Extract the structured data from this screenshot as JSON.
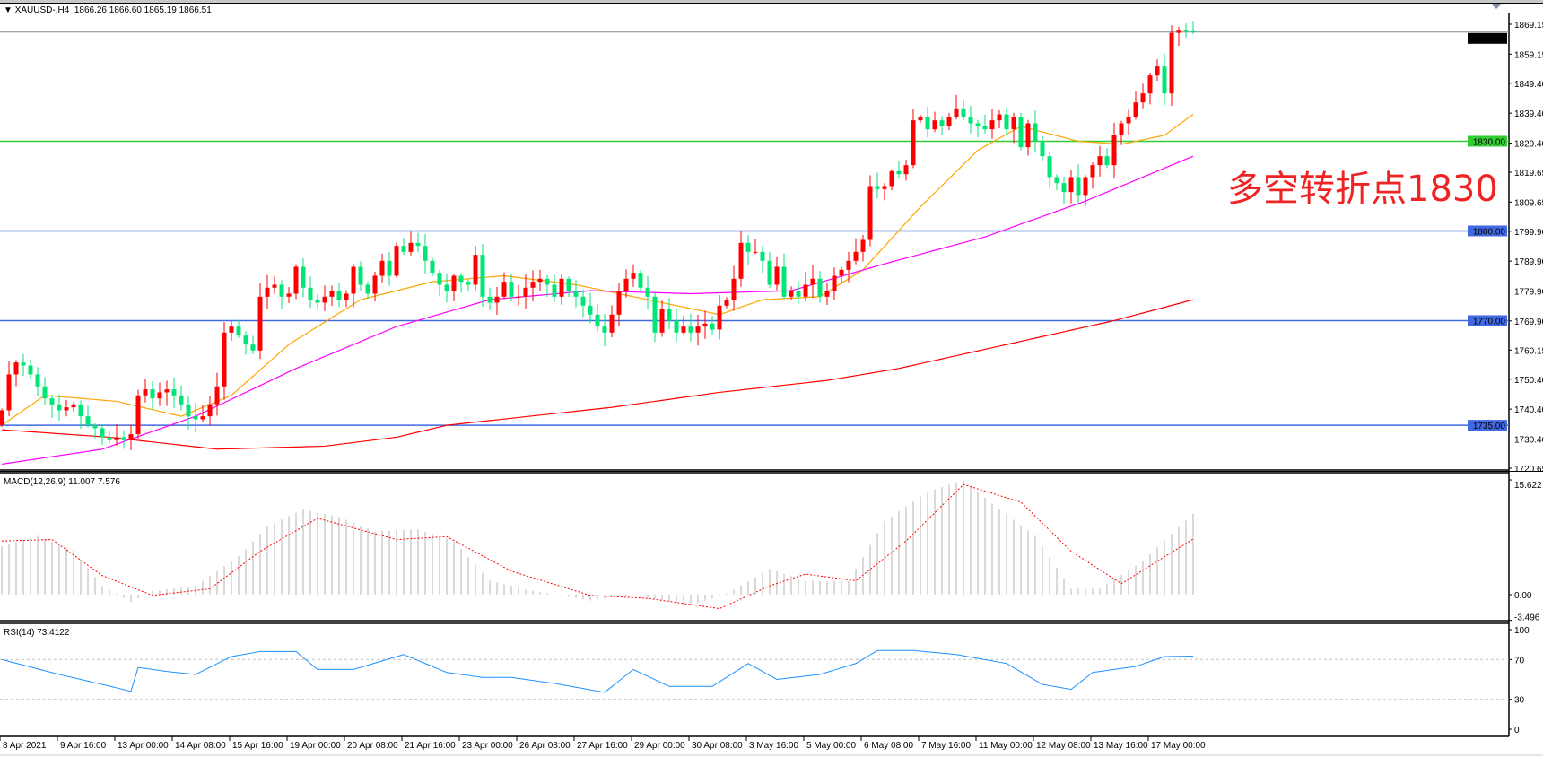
{
  "header": {
    "dropdown_icon": "triangle-down-icon",
    "symbol": "XAUUSD-,H4",
    "ohlc": "1866.26 1866.60 1865.19 1866.51"
  },
  "annotation": "多空转折点1830",
  "colors": {
    "bull_candle": "#ff0000",
    "bear_candle": "#00e676",
    "ma_fast": "#ffa500",
    "ma_mid": "#ff00ff",
    "ma_slow": "#ff0000",
    "support_green": "#32cd32",
    "support_blue": "#4169e1",
    "current_price": "#808a96",
    "macd_hist": "#b4b4b4",
    "macd_signal": "#ff0000",
    "rsi": "#1e90ff",
    "rsi_levels": "#c0c0c0"
  },
  "macd_label": "MACD(12,26,9) 11.007 7.576",
  "rsi_label": "RSI(14) 73.4122",
  "chart_data": {
    "type": "candlestick",
    "symbol": "XAUUSD-",
    "timeframe": "H4",
    "price_axis": {
      "ylim": [
        1720.65,
        1869.15
      ],
      "ticks": [
        "1869.15",
        "1859.15",
        "1849.40",
        "1839.40",
        "1829.40",
        "1819.65",
        "1809.65",
        "1799.90",
        "1789.90",
        "1779.90",
        "1769.90",
        "1760.15",
        "1750.40",
        "1740.40",
        "1730.40",
        "1720.65"
      ],
      "current_price": "1866.51"
    },
    "horizontal_lines": [
      {
        "price": 1830.0,
        "label": "1830.00",
        "color": "#32cd32"
      },
      {
        "price": 1800.0,
        "label": "1800.00",
        "color": "#4169e1"
      },
      {
        "price": 1770.0,
        "label": "1770.00",
        "color": "#4169e1"
      },
      {
        "price": 1735.0,
        "label": "1735.00",
        "color": "#4169e1"
      }
    ],
    "x_tick_labels": [
      "8 Apr 2021",
      "9 Apr 16:00",
      "13 Apr 00:00",
      "14 Apr 08:00",
      "15 Apr 16:00",
      "19 Apr 00:00",
      "20 Apr 08:00",
      "21 Apr 16:00",
      "23 Apr 00:00",
      "26 Apr 08:00",
      "27 Apr 16:00",
      "29 Apr 00:00",
      "30 Apr 08:00",
      "3 May 16:00",
      "5 May 00:00",
      "6 May 08:00",
      "7 May 16:00",
      "11 May 00:00",
      "12 May 08:00",
      "13 May 16:00",
      "17 May 00:00"
    ],
    "bars_per_x_label": 8,
    "first_open": 1735,
    "closes": [
      1740,
      1752,
      1756,
      1755,
      1752,
      1748,
      1744,
      1742,
      1740,
      1741,
      1742,
      1738,
      1735,
      1734,
      1731,
      1730,
      1731,
      1730,
      1732,
      1745,
      1747,
      1744,
      1746,
      1747,
      1745,
      1742,
      1738,
      1737,
      1738,
      1742,
      1748,
      1766,
      1768,
      1765,
      1762,
      1760,
      1778,
      1781,
      1782,
      1778,
      1779,
      1788,
      1781,
      1777,
      1776,
      1778,
      1780,
      1777,
      1779,
      1788,
      1782,
      1779,
      1785,
      1790,
      1785,
      1795,
      1793,
      1796,
      1795,
      1790,
      1786,
      1782,
      1780,
      1785,
      1783,
      1782,
      1792,
      1778,
      1776,
      1778,
      1783,
      1778,
      1778,
      1781,
      1783,
      1784,
      1782,
      1778,
      1784,
      1780,
      1778,
      1775,
      1772,
      1768,
      1766,
      1772,
      1780,
      1784,
      1786,
      1781,
      1778,
      1766,
      1774,
      1770,
      1766,
      1768,
      1766,
      1768,
      1769,
      1767,
      1775,
      1777,
      1784,
      1796,
      1793,
      1793,
      1790,
      1782,
      1788,
      1778,
      1780,
      1778,
      1782,
      1784,
      1778,
      1780,
      1785,
      1787,
      1790,
      1793,
      1797,
      1815,
      1814,
      1815,
      1820,
      1819,
      1822,
      1837,
      1838,
      1834,
      1837,
      1835,
      1838,
      1841,
      1838,
      1836,
      1835,
      1834,
      1837,
      1839,
      1834,
      1838,
      1828,
      1836,
      1830,
      1825,
      1818,
      1816,
      1813,
      1818,
      1812,
      1818,
      1822,
      1825,
      1822,
      1832,
      1836,
      1838,
      1843,
      1846,
      1852,
      1855,
      1846,
      1866.26,
      1867,
      1866.8,
      1866.51
    ],
    "moving_averages": [
      {
        "color": "#ffa500",
        "points": [
          [
            0,
            1735
          ],
          [
            6,
            1745
          ],
          [
            16,
            1743
          ],
          [
            25,
            1738
          ],
          [
            32,
            1745
          ],
          [
            40,
            1762
          ],
          [
            50,
            1777
          ],
          [
            60,
            1783
          ],
          [
            70,
            1785
          ],
          [
            80,
            1782
          ],
          [
            90,
            1777
          ],
          [
            100,
            1772
          ],
          [
            106,
            1777
          ],
          [
            114,
            1778
          ],
          [
            120,
            1787
          ],
          [
            128,
            1808
          ],
          [
            136,
            1827
          ],
          [
            142,
            1835
          ],
          [
            150,
            1830
          ],
          [
            156,
            1829
          ],
          [
            162,
            1832
          ],
          [
            166,
            1839
          ]
        ]
      },
      {
        "color": "#ff00ff",
        "points": [
          [
            0,
            1722
          ],
          [
            14,
            1727
          ],
          [
            27,
            1738
          ],
          [
            41,
            1754
          ],
          [
            55,
            1768
          ],
          [
            68,
            1777
          ],
          [
            82,
            1780
          ],
          [
            96,
            1779
          ],
          [
            110,
            1780
          ],
          [
            123,
            1789
          ],
          [
            137,
            1798
          ],
          [
            151,
            1810
          ],
          [
            166,
            1825
          ]
        ]
      },
      {
        "color": "#ff0000",
        "points": [
          [
            0,
            1733.5
          ],
          [
            15,
            1731
          ],
          [
            30,
            1727
          ],
          [
            45,
            1728
          ],
          [
            55,
            1731
          ],
          [
            62,
            1735
          ],
          [
            85,
            1741
          ],
          [
            100,
            1746
          ],
          [
            115,
            1750
          ],
          [
            125,
            1754
          ],
          [
            140,
            1762
          ],
          [
            155,
            1770
          ],
          [
            166,
            1777
          ]
        ]
      }
    ],
    "macd": {
      "params": "12,26,9",
      "ylim": [
        -3.496,
        15.622
      ],
      "ticks": [
        "15.622",
        "0.00",
        "-3.496"
      ],
      "main_points": [
        [
          0,
          6.6
        ],
        [
          5,
          8
        ],
        [
          10,
          6
        ],
        [
          14,
          1.2
        ],
        [
          18,
          -1
        ],
        [
          21,
          0.5
        ],
        [
          27,
          1.2
        ],
        [
          33,
          5.2
        ],
        [
          37,
          9.3
        ],
        [
          42,
          11.6
        ],
        [
          47,
          10.6
        ],
        [
          52,
          8.6
        ],
        [
          58,
          8.9
        ],
        [
          63,
          7.3
        ],
        [
          68,
          1.9
        ],
        [
          74,
          0.5
        ],
        [
          82,
          -0.8
        ],
        [
          88,
          0
        ],
        [
          96,
          -1.5
        ],
        [
          101,
          0.1
        ],
        [
          107,
          3.5
        ],
        [
          112,
          1.9
        ],
        [
          118,
          1.9
        ],
        [
          123,
          10
        ],
        [
          129,
          14
        ],
        [
          134,
          15.6
        ],
        [
          138,
          12.4
        ],
        [
          144,
          8
        ],
        [
          149,
          0.8
        ],
        [
          153,
          0.8
        ],
        [
          159,
          4.6
        ],
        [
          166,
          11.007
        ]
      ],
      "signal_points": [
        [
          0,
          7.3
        ],
        [
          7,
          7.5
        ],
        [
          14,
          2.6
        ],
        [
          21,
          -0.1
        ],
        [
          29,
          0.8
        ],
        [
          36,
          5.9
        ],
        [
          44,
          10.4
        ],
        [
          55,
          7.5
        ],
        [
          62,
          7.9
        ],
        [
          71,
          3.2
        ],
        [
          82,
          -0.1
        ],
        [
          90,
          -0.5
        ],
        [
          100,
          -1.9
        ],
        [
          107,
          1.2
        ],
        [
          112,
          2.8
        ],
        [
          119,
          1.9
        ],
        [
          126,
          7.3
        ],
        [
          134,
          15
        ],
        [
          142,
          12.6
        ],
        [
          149,
          5.9
        ],
        [
          156,
          1.5
        ],
        [
          166,
          7.576
        ]
      ]
    },
    "rsi": {
      "period": 14,
      "ylim": [
        0,
        100
      ],
      "ticks": [
        "100",
        "70",
        "30",
        "0"
      ],
      "levels": [
        70,
        30
      ],
      "points": [
        [
          0,
          70
        ],
        [
          8,
          55
        ],
        [
          14,
          45
        ],
        [
          18,
          38
        ],
        [
          19,
          62
        ],
        [
          23,
          58
        ],
        [
          27,
          55
        ],
        [
          32,
          73
        ],
        [
          36,
          78
        ],
        [
          41,
          78
        ],
        [
          44,
          60
        ],
        [
          49,
          60
        ],
        [
          56,
          75
        ],
        [
          62,
          57
        ],
        [
          67,
          52
        ],
        [
          71,
          52
        ],
        [
          77,
          46
        ],
        [
          84,
          37
        ],
        [
          88,
          60
        ],
        [
          93,
          43
        ],
        [
          99,
          43
        ],
        [
          104,
          66
        ],
        [
          108,
          50
        ],
        [
          114,
          55
        ],
        [
          119,
          66
        ],
        [
          122,
          79
        ],
        [
          127,
          79
        ],
        [
          133,
          75
        ],
        [
          140,
          66
        ],
        [
          145,
          45
        ],
        [
          149,
          40
        ],
        [
          152,
          57
        ],
        [
          158,
          63
        ],
        [
          162,
          73
        ],
        [
          166,
          73.4122
        ]
      ]
    }
  }
}
